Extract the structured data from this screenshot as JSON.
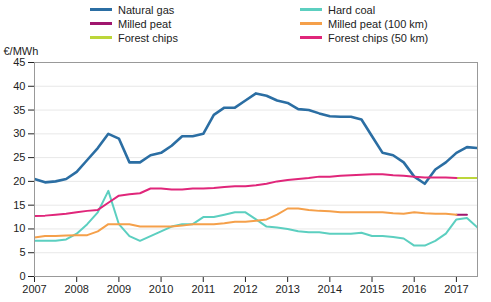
{
  "chart_data": {
    "type": "line",
    "y_label": "€/MWh",
    "x": [
      2007,
      2007.25,
      2007.5,
      2007.75,
      2008,
      2008.25,
      2008.5,
      2008.75,
      2009,
      2009.25,
      2009.5,
      2009.75,
      2010,
      2010.25,
      2010.5,
      2010.75,
      2011,
      2011.25,
      2011.5,
      2011.75,
      2012,
      2012.25,
      2012.5,
      2012.75,
      2013,
      2013.25,
      2013.5,
      2013.75,
      2014,
      2014.25,
      2014.5,
      2014.75,
      2015,
      2015.25,
      2015.5,
      2015.75,
      2016,
      2016.25,
      2016.5,
      2016.75,
      2017,
      2017.25,
      2017.5
    ],
    "series": [
      {
        "name": "Natural gas",
        "color": "#2b6ea3",
        "values": [
          20.5,
          19.8,
          20,
          20.5,
          22,
          24.5,
          27,
          30,
          29,
          24,
          24,
          25.5,
          26,
          27.5,
          29.5,
          29.5,
          30,
          34,
          35.5,
          35.5,
          37,
          38.5,
          38,
          37,
          36.5,
          35.2,
          35,
          34.3,
          33.7,
          33.6,
          33.6,
          33,
          29.5,
          26,
          25.5,
          24,
          21,
          19.5,
          22.5,
          24,
          26,
          27.2,
          27
        ]
      },
      {
        "name": "Hard coal",
        "color": "#5ccfc0",
        "values": [
          7.5,
          7.5,
          7.5,
          7.8,
          9,
          11,
          13.5,
          18,
          11,
          8.5,
          7.5,
          8.5,
          9.5,
          10.5,
          11,
          11,
          12.5,
          12.5,
          13,
          13.5,
          13.5,
          12,
          10.5,
          10.3,
          10,
          9.5,
          9.3,
          9.3,
          9,
          9,
          9,
          9.2,
          8.5,
          8.5,
          8.3,
          8,
          6.5,
          6.5,
          7.5,
          9,
          12,
          12.3,
          10.3
        ]
      },
      {
        "name": "Milled peat",
        "color": "#a0166e",
        "values": [
          null,
          null,
          null,
          null,
          null,
          null,
          null,
          null,
          null,
          null,
          null,
          null,
          null,
          null,
          null,
          null,
          null,
          null,
          null,
          null,
          null,
          null,
          null,
          null,
          null,
          null,
          null,
          null,
          null,
          null,
          null,
          null,
          null,
          null,
          null,
          null,
          null,
          null,
          null,
          null,
          13,
          13,
          null
        ]
      },
      {
        "name": "Milled peat (100 km)",
        "color": "#f5a04a",
        "values": [
          8.2,
          8.5,
          8.5,
          8.6,
          8.7,
          8.7,
          9.5,
          11,
          11,
          11,
          10.5,
          10.5,
          10.5,
          10.5,
          10.7,
          11,
          11,
          11,
          11.2,
          11.5,
          11.5,
          11.7,
          12,
          13,
          14.3,
          14.3,
          14,
          13.8,
          13.7,
          13.5,
          13.5,
          13.5,
          13.5,
          13.5,
          13.3,
          13.2,
          13.5,
          13.3,
          13.2,
          13.2,
          13,
          null,
          null
        ]
      },
      {
        "name": "Forest chips",
        "color": "#bcd63a",
        "values": [
          null,
          null,
          null,
          null,
          null,
          null,
          null,
          null,
          null,
          null,
          null,
          null,
          null,
          null,
          null,
          null,
          null,
          null,
          null,
          null,
          null,
          null,
          null,
          null,
          null,
          null,
          null,
          null,
          null,
          null,
          null,
          null,
          null,
          null,
          null,
          null,
          null,
          null,
          null,
          null,
          20.7,
          20.7,
          20.7
        ]
      },
      {
        "name": "Forest chips (50 km)",
        "color": "#e0267a",
        "values": [
          12.7,
          12.8,
          13,
          13.2,
          13.5,
          13.8,
          14,
          15.5,
          17,
          17.3,
          17.5,
          18.5,
          18.5,
          18.3,
          18.3,
          18.5,
          18.5,
          18.6,
          18.8,
          19,
          19,
          19.2,
          19.5,
          20,
          20.3,
          20.5,
          20.7,
          21,
          21,
          21.2,
          21.3,
          21.4,
          21.5,
          21.5,
          21.3,
          21.2,
          21,
          20.8,
          20.8,
          20.8,
          20.7,
          null,
          null
        ]
      }
    ],
    "xlim": [
      2007,
      2017.5
    ],
    "xticks": [
      2007,
      2008,
      2009,
      2010,
      2011,
      2012,
      2013,
      2014,
      2015,
      2016,
      2017
    ],
    "ylim": [
      0,
      45
    ],
    "yticks": [
      0,
      5,
      10,
      15,
      20,
      25,
      30,
      35,
      40,
      45
    ],
    "grid": true,
    "legend": "top"
  }
}
